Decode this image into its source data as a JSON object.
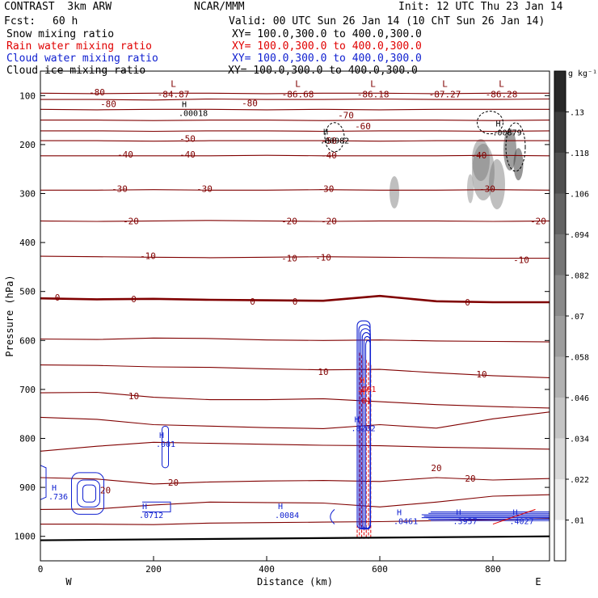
{
  "header": {
    "model": "CONTRAST  3km ARW",
    "org": "NCAR/MMM",
    "init": "Init: 12 UTC Thu 23 Jan 14",
    "fcst_label": "Fcst:",
    "fcst_value": "60 h",
    "valid": "Valid: 00 UTC Sun 26 Jan 14 (10 ChT Sun 26 Jan 14)"
  },
  "colors": {
    "snow": "#000000",
    "rain": "#e00000",
    "cloud_water": "#1020d0",
    "cloud_ice": "#000000",
    "temperature": "#800000"
  },
  "fields": [
    {
      "name": "Snow mixing ratio",
      "xy": "XY= 100.0,300.0 to 400.0,300.0",
      "color": "#000000"
    },
    {
      "name": "Rain water mixing ratio",
      "xy": "XY= 100.0,300.0 to 400.0,300.0",
      "color": "#e00000"
    },
    {
      "name": "Cloud water mixing ratio",
      "xy": "XY= 100.0,300.0 to 400.0,300.0",
      "color": "#1020d0"
    },
    {
      "name": "Cloud ice mixing ratio",
      "xy": "XY= 100.0,300.0 to 400.0,300.0",
      "color": "#000000"
    }
  ],
  "chart_data": {
    "type": "cross-section contour",
    "xlabel": "Distance (km)",
    "ylabel": "Pressure (hPa)",
    "xlim": [
      0,
      900
    ],
    "ylim": [
      1050,
      50
    ],
    "x_ticks": [
      "0",
      "200",
      "400",
      "600",
      "800"
    ],
    "y_ticks": [
      "100",
      "200",
      "300",
      "400",
      "500",
      "600",
      "700",
      "800",
      "900",
      "1000"
    ],
    "direction_left": "W",
    "direction_right": "E",
    "colorbar": {
      "unit": "g kg⁻¹",
      "ticks": [
        ".01",
        ".022",
        ".034",
        ".046",
        ".058",
        ".07",
        ".082",
        ".094",
        ".106",
        ".118",
        ".13"
      ]
    },
    "temperature_contours": [
      {
        "level": -80,
        "p": [
          95,
          96,
          95,
          95,
          96,
          95,
          95,
          96,
          95,
          95
        ]
      },
      {
        "level": -80,
        "p": [
          108,
          108,
          109,
          107,
          108,
          108,
          107,
          108,
          108,
          107
        ]
      },
      {
        "level": -70,
        "p": [
          128,
          129,
          128,
          128,
          129,
          128,
          129,
          128,
          128,
          128
        ]
      },
      {
        "level": -70,
        "p": [
          150,
          150,
          151,
          150,
          150,
          151,
          150,
          150,
          151,
          150
        ]
      },
      {
        "level": -60,
        "p": [
          172,
          172,
          173,
          172,
          172,
          173,
          172,
          172,
          173,
          172
        ]
      },
      {
        "level": -50,
        "p": [
          192,
          192,
          193,
          192,
          192,
          192,
          193,
          192,
          192,
          192
        ]
      },
      {
        "level": -40,
        "p": [
          223,
          223,
          223,
          223,
          222,
          223,
          223,
          223,
          222,
          223
        ]
      },
      {
        "level": -30,
        "p": [
          293,
          293,
          292,
          293,
          293,
          292,
          293,
          293,
          292,
          293
        ]
      },
      {
        "level": -20,
        "p": [
          356,
          357,
          356,
          355,
          356,
          357,
          356,
          356,
          357,
          356
        ]
      },
      {
        "level": -10,
        "p": [
          428,
          429,
          430,
          431,
          430,
          429,
          430,
          431,
          432,
          432
        ]
      },
      {
        "level": 0,
        "p": [
          514,
          516,
          515,
          517,
          518,
          519,
          509,
          520,
          522,
          522
        ]
      },
      {
        "level": 10,
        "p": [
          597,
          598,
          595,
          596,
          599,
          600,
          599,
          601,
          602,
          603
        ]
      },
      {
        "level": 10,
        "p": [
          650,
          651,
          654,
          655,
          658,
          660,
          659,
          666,
          672,
          676
        ]
      },
      {
        "level": 10,
        "p": [
          707,
          706,
          716,
          721,
          721,
          719,
          725,
          731,
          735,
          738
        ]
      },
      {
        "level": 20,
        "p": [
          757,
          761,
          772,
          775,
          778,
          780,
          772,
          779,
          760,
          746
        ]
      },
      {
        "level": 20,
        "p": [
          826,
          816,
          808,
          810,
          812,
          814,
          815,
          818,
          820,
          822
        ]
      },
      {
        "level": 20,
        "p": [
          880,
          883,
          893,
          889,
          887,
          886,
          888,
          880,
          885,
          882
        ]
      },
      {
        "level": 20,
        "p": [
          945,
          944,
          936,
          930,
          931,
          932,
          940,
          930,
          918,
          915
        ]
      },
      {
        "level": 30,
        "p": [
          975,
          975,
          976,
          973,
          972,
          971,
          970,
          968,
          966,
          964
        ]
      }
    ],
    "temperature_labels": [
      {
        "x": 100,
        "p": 93,
        "text": "-80"
      },
      {
        "x": 120,
        "p": 117,
        "text": "-80"
      },
      {
        "x": 370,
        "p": 115,
        "text": "-80"
      },
      {
        "x": 540,
        "p": 140,
        "text": "-70"
      },
      {
        "x": 570,
        "p": 162,
        "text": "-60"
      },
      {
        "x": 260,
        "p": 188,
        "text": "-50"
      },
      {
        "x": 510,
        "p": 192,
        "text": "-50"
      },
      {
        "x": 150,
        "p": 220,
        "text": "-40"
      },
      {
        "x": 260,
        "p": 220,
        "text": "-40"
      },
      {
        "x": 510,
        "p": 222,
        "text": "-40"
      },
      {
        "x": 775,
        "p": 222,
        "text": "-40"
      },
      {
        "x": 140,
        "p": 290,
        "text": "-30"
      },
      {
        "x": 290,
        "p": 290,
        "text": "-30"
      },
      {
        "x": 505,
        "p": 290,
        "text": "-30"
      },
      {
        "x": 790,
        "p": 290,
        "text": "-30"
      },
      {
        "x": 160,
        "p": 356,
        "text": "-20"
      },
      {
        "x": 440,
        "p": 356,
        "text": "-20"
      },
      {
        "x": 510,
        "p": 356,
        "text": "-20"
      },
      {
        "x": 880,
        "p": 356,
        "text": "-20"
      },
      {
        "x": 190,
        "p": 427,
        "text": "-10"
      },
      {
        "x": 440,
        "p": 432,
        "text": "-10"
      },
      {
        "x": 500,
        "p": 430,
        "text": "-10"
      },
      {
        "x": 850,
        "p": 435,
        "text": "-10"
      },
      {
        "x": 30,
        "p": 512,
        "text": "0"
      },
      {
        "x": 165,
        "p": 515,
        "text": "0"
      },
      {
        "x": 375,
        "p": 520,
        "text": "0"
      },
      {
        "x": 450,
        "p": 520,
        "text": "0"
      },
      {
        "x": 755,
        "p": 522,
        "text": "0"
      },
      {
        "x": 500,
        "p": 664,
        "text": "10"
      },
      {
        "x": 780,
        "p": 669,
        "text": "10"
      },
      {
        "x": 165,
        "p": 713,
        "text": "10"
      },
      {
        "x": 700,
        "p": 860,
        "text": "20"
      },
      {
        "x": 760,
        "p": 882,
        "text": "20"
      },
      {
        "x": 235,
        "p": 890,
        "text": "20"
      },
      {
        "x": 115,
        "p": 906,
        "text": "20"
      }
    ],
    "min_markers": [
      {
        "x": 235,
        "p": 82,
        "marker": "L",
        "value": "-84.87"
      },
      {
        "x": 455,
        "p": 82,
        "marker": "L",
        "value": "-86.68"
      },
      {
        "x": 588,
        "p": 82,
        "marker": "L",
        "value": "-86.18"
      },
      {
        "x": 715,
        "p": 82,
        "marker": "L",
        "value": "-87.27"
      },
      {
        "x": 815,
        "p": 82,
        "marker": "L",
        "value": "-86.28"
      }
    ],
    "max_markers": [
      {
        "x": 250,
        "p": 137,
        "value": ".00018",
        "color": "#000000"
      },
      {
        "x": 500,
        "p": 193,
        "value": ".00982",
        "color": "#000000"
      },
      {
        "x": 805,
        "p": 176,
        "value": ".00879",
        "color": "#000000"
      },
      {
        "x": 565,
        "p": 700,
        "value": ".001",
        "color": "#e00000"
      },
      {
        "x": 565,
        "p": 724,
        "value": ".01",
        "color": "#e00000"
      },
      {
        "x": 555,
        "p": 780,
        "value": ".8202",
        "color": "#1020d0"
      },
      {
        "x": 210,
        "p": 812,
        "value": ".001",
        "color": "#1020d0"
      },
      {
        "x": 20,
        "p": 920,
        "value": ".736",
        "color": "#1020d0"
      },
      {
        "x": 180,
        "p": 958,
        "value": ".0712",
        "color": "#1020d0"
      },
      {
        "x": 420,
        "p": 958,
        "value": ".0084",
        "color": "#1020d0"
      },
      {
        "x": 630,
        "p": 970,
        "value": ".0461",
        "color": "#1020d0"
      },
      {
        "x": 735,
        "p": 970,
        "value": ".3957",
        "color": "#1020d0"
      },
      {
        "x": 835,
        "p": 970,
        "value": ".4027",
        "color": "#1020d0"
      }
    ]
  }
}
